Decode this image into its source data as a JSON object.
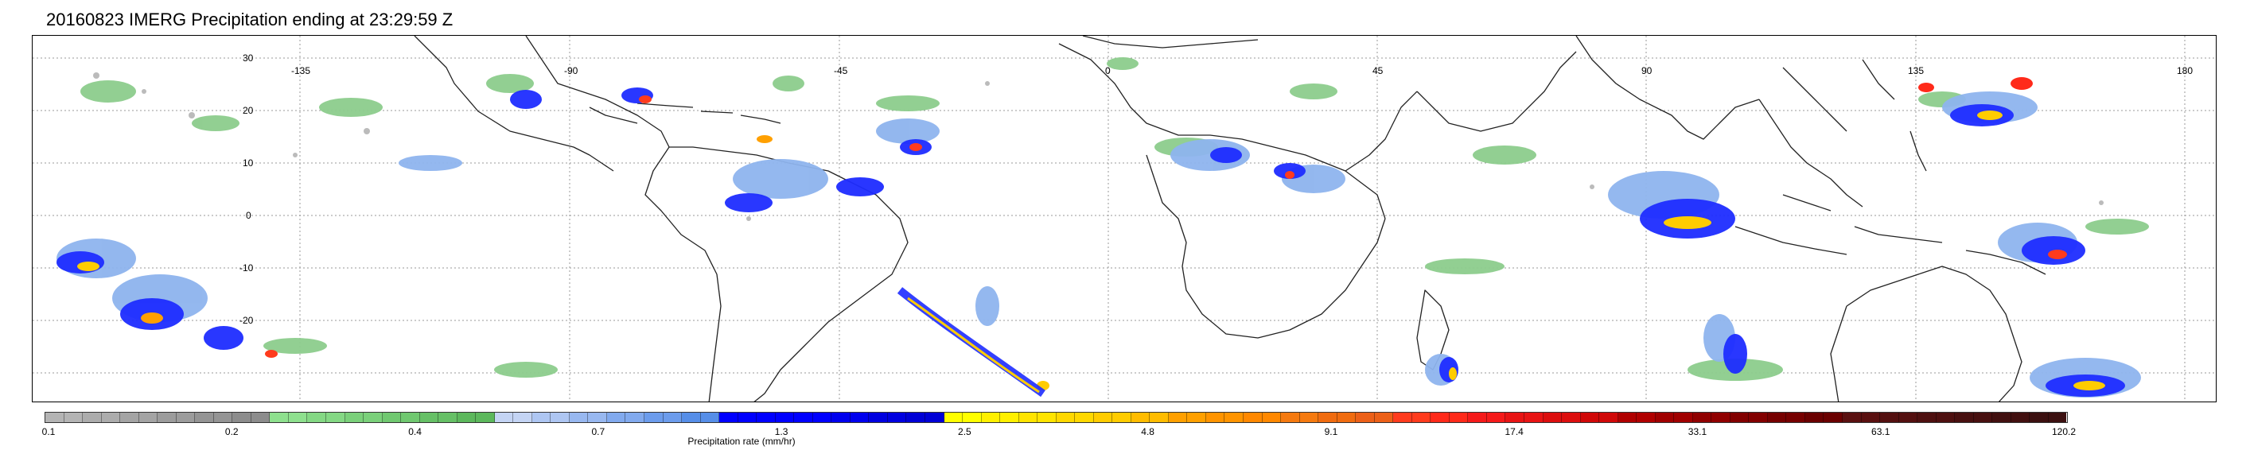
{
  "title": "20160823 IMERG Precipitation ending at 23:29:59 Z",
  "map": {
    "lat_labels": [
      "30",
      "20",
      "10",
      "0",
      "-10",
      "-20"
    ],
    "lon_labels": [
      "-135",
      "-90",
      "-45",
      "0",
      "45",
      "90",
      "135",
      "180"
    ],
    "grid": "dotted"
  },
  "colorbar": {
    "label": "Precipitation rate (mm/hr)",
    "ticks": [
      "0.1",
      "0.2",
      "0.4",
      "0.7",
      "1.3",
      "2.5",
      "4.8",
      "9.1",
      "17.4",
      "33.1",
      "63.1",
      "120.2"
    ],
    "colors": [
      "#b4b4b4",
      "#b4b4b4",
      "#acacac",
      "#acacac",
      "#a4a4a4",
      "#a4a4a4",
      "#9c9c9c",
      "#9c9c9c",
      "#949494",
      "#949494",
      "#8c8c8c",
      "#8c8c8c",
      "#8ee08e",
      "#8ee08e",
      "#84d884",
      "#84d884",
      "#7ad07a",
      "#7ad07a",
      "#70c870",
      "#70c870",
      "#66c066",
      "#66c066",
      "#5cb85c",
      "#5cb85c",
      "#c4d4f4",
      "#c4d4f4",
      "#aec6f2",
      "#aec6f2",
      "#98b8f0",
      "#98b8f0",
      "#82aaee",
      "#82aaee",
      "#6c9cec",
      "#6c9cec",
      "#568ee8",
      "#568ee8",
      "#0000ff",
      "#0000ff",
      "#0000ff",
      "#0000ff",
      "#0000ff",
      "#0000ff",
      "#0000ee",
      "#0000ee",
      "#0000e0",
      "#0000e0",
      "#0000d6",
      "#0000d6",
      "#ffff00",
      "#ffff00",
      "#fff000",
      "#fff000",
      "#ffe400",
      "#ffe400",
      "#ffd800",
      "#ffd800",
      "#ffcc00",
      "#ffcc00",
      "#ffbc00",
      "#ffbc00",
      "#ffa000",
      "#ffa000",
      "#ff9400",
      "#ff9400",
      "#ff8800",
      "#ff8800",
      "#f57a10",
      "#f57a10",
      "#f06c10",
      "#f06c10",
      "#ec6018",
      "#ec6018",
      "#ff3b1d",
      "#ff3b1d",
      "#ff2a1a",
      "#ff2a1a",
      "#f51a1a",
      "#f51a1a",
      "#e81414",
      "#e81414",
      "#dc0e0e",
      "#dc0e0e",
      "#d00808",
      "#d00808",
      "#b00000",
      "#b00000",
      "#a00000",
      "#a00000",
      "#900000",
      "#900000",
      "#820000",
      "#820000",
      "#760000",
      "#760000",
      "#6a0000",
      "#6a0000",
      "#5a1010",
      "#5a1010",
      "#541010",
      "#541010",
      "#4e1010",
      "#4e1010",
      "#481010",
      "#481010",
      "#421010",
      "#421010",
      "#3c1010",
      "#3c1010"
    ]
  }
}
